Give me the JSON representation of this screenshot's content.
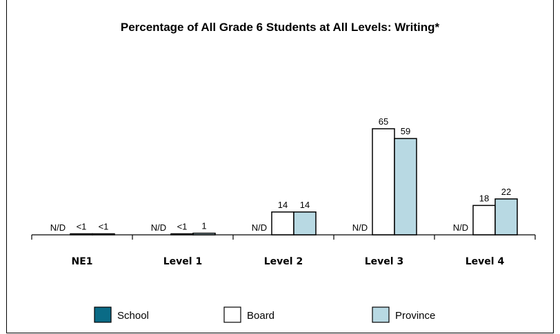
{
  "chart_data": {
    "type": "bar",
    "title": "Percentage of All Grade 6 Students at All Levels: Writing*",
    "categories": [
      "NE1",
      "Level 1",
      "Level 2",
      "Level 3",
      "Level 4"
    ],
    "series": [
      {
        "name": "School",
        "color": "#0a6b86",
        "values": [
          null,
          null,
          null,
          null,
          null
        ],
        "labels": [
          "N/D",
          "N/D",
          "N/D",
          "N/D",
          "N/D"
        ]
      },
      {
        "name": "Board",
        "color": "#ffffff",
        "values": [
          0.4,
          0.4,
          14,
          65,
          18
        ],
        "labels": [
          "<1",
          "<1",
          "14",
          "65",
          "18"
        ]
      },
      {
        "name": "Province",
        "color": "#b8d9e3",
        "values": [
          0.4,
          1,
          14,
          59,
          22
        ],
        "labels": [
          "<1",
          "1",
          "14",
          "59",
          "22"
        ]
      }
    ],
    "ylim": [
      0,
      100
    ],
    "grid": false,
    "legend": "bottom"
  }
}
